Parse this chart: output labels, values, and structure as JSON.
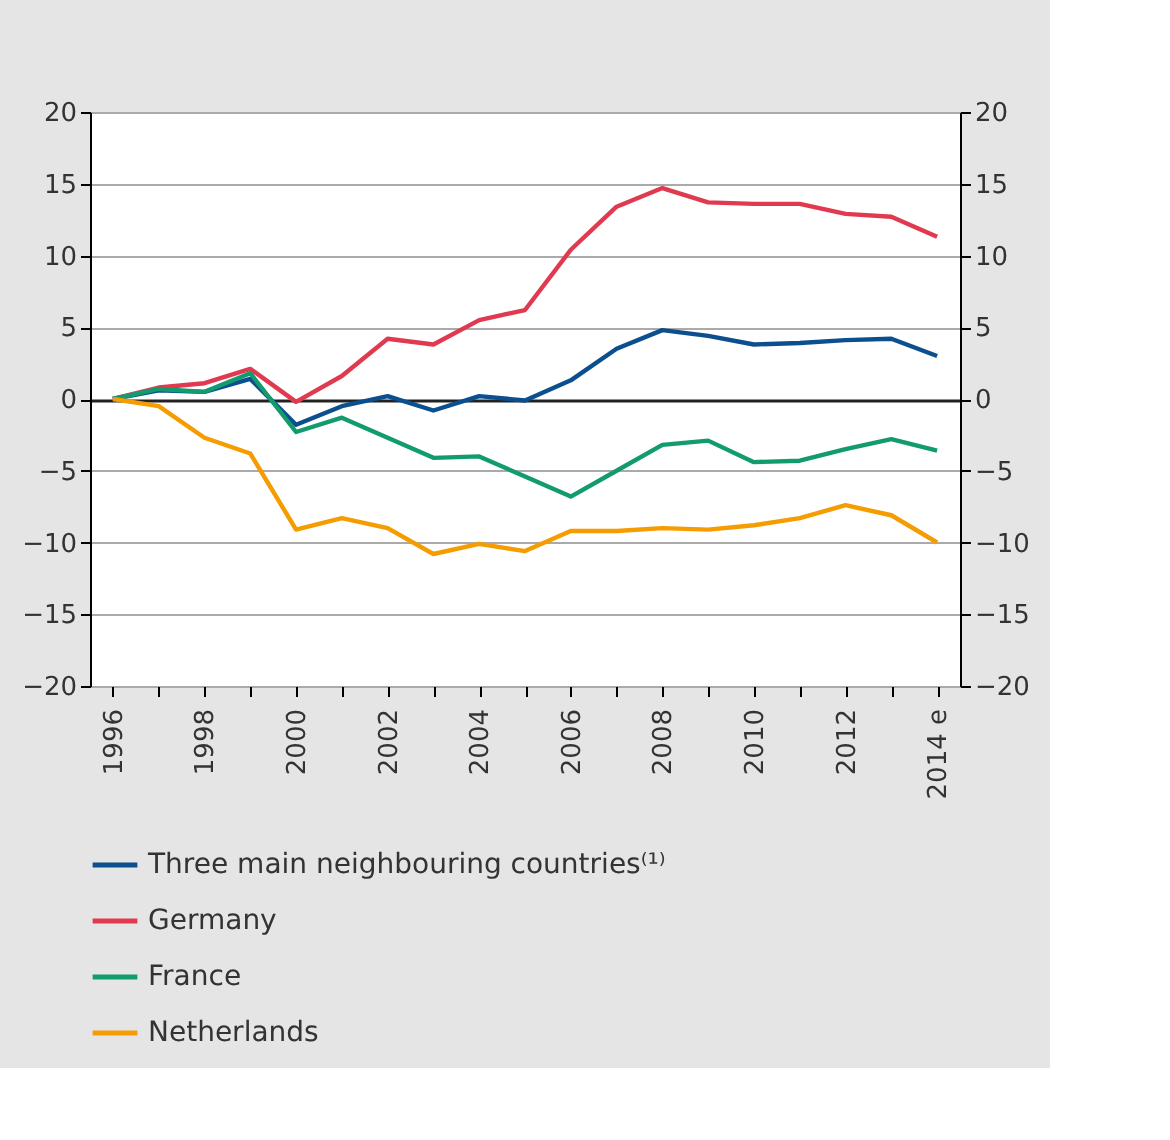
{
  "chart_data": {
    "type": "line",
    "categories": [
      "1996",
      null,
      "1998",
      null,
      "2000",
      null,
      "2002",
      null,
      "2004",
      null,
      "2006",
      null,
      "2008",
      null,
      "2010",
      null,
      "2012",
      null,
      "2014 e"
    ],
    "series": [
      {
        "name": "Three main neighbouring countries⁽¹⁾",
        "color": "#0b4f8f",
        "values": [
          0,
          0.6,
          0.5,
          1.4,
          -1.8,
          -0.5,
          0.2,
          -0.8,
          0.2,
          -0.1,
          1.3,
          3.5,
          4.8,
          4.4,
          3.8,
          3.9,
          4.1,
          4.2,
          3.0
        ]
      },
      {
        "name": "Germany",
        "color": "#e03a50",
        "values": [
          0,
          0.8,
          1.1,
          2.1,
          -0.2,
          1.6,
          4.2,
          3.8,
          5.5,
          6.2,
          10.4,
          13.4,
          14.7,
          13.7,
          13.6,
          13.6,
          12.9,
          12.7,
          11.3
        ]
      },
      {
        "name": "France",
        "color": "#129b6f",
        "values": [
          0,
          0.7,
          0.5,
          1.8,
          -2.3,
          -1.3,
          -2.7,
          -4.1,
          -4.0,
          -5.4,
          -6.8,
          -5.0,
          -3.2,
          -2.9,
          -4.4,
          -4.3,
          -3.5,
          -2.8,
          -3.6
        ]
      },
      {
        "name": "Netherlands",
        "color": "#f59c00",
        "values": [
          0,
          -0.5,
          -2.7,
          -3.8,
          -9.1,
          -8.3,
          -9.0,
          -10.8,
          -10.1,
          -10.6,
          -9.2,
          -9.2,
          -9.0,
          -9.1,
          -8.8,
          -8.3,
          -7.4,
          -8.1,
          -10.0
        ]
      }
    ],
    "ylim": [
      -20,
      20
    ],
    "yticks": [
      -20,
      -15,
      -10,
      -5,
      0,
      5,
      10,
      15,
      20
    ],
    "y2lim": [
      -20,
      20
    ],
    "y2ticks": [
      -20,
      -15,
      -10,
      -5,
      0,
      5,
      10,
      15,
      20
    ],
    "grid": "y",
    "legend": "bottom",
    "line_style": "solid",
    "marker": "none"
  }
}
